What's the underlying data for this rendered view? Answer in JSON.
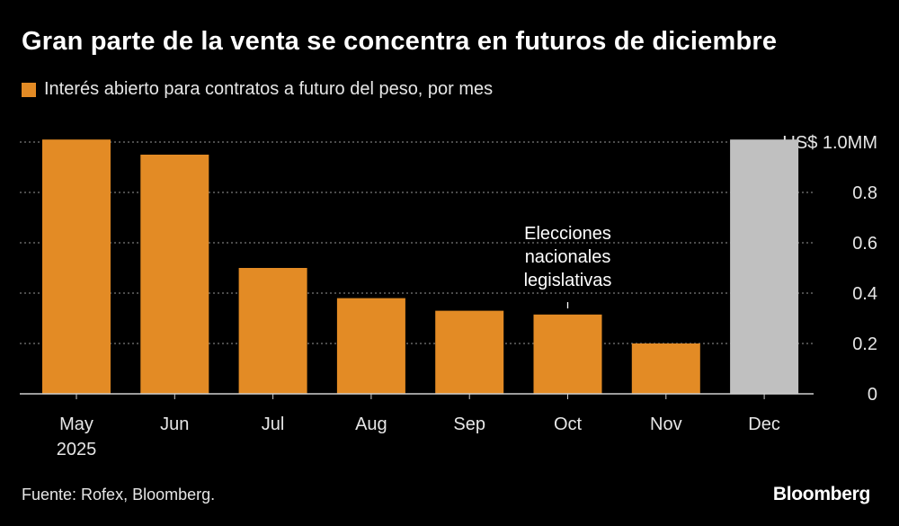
{
  "header": {
    "title": "Gran parte de la venta se concentra en futuros de diciembre",
    "legend_label": "Interés abierto para contratos a futuro del peso, por mes"
  },
  "footer": {
    "source": "Fuente: Rofex, Bloomberg.",
    "brand": "Bloomberg"
  },
  "colors": {
    "primary": "#e38b25",
    "highlight": "#c0c0c0",
    "grid": "#7a7a7a",
    "axis": "#d0d0d0"
  },
  "chart_data": {
    "type": "bar",
    "title": "Gran parte de la venta se concentra en futuros de diciembre",
    "series": [
      {
        "name": "Interés abierto para contratos a futuro del peso, por mes",
        "values": [
          1.02,
          0.95,
          0.5,
          0.38,
          0.33,
          0.315,
          0.2,
          1.01
        ]
      }
    ],
    "categories": [
      "May",
      "Jun",
      "Jul",
      "Aug",
      "Sep",
      "Oct",
      "Nov",
      "Dec"
    ],
    "category_sublabels": [
      "2025",
      "",
      "",
      "",
      "",
      "",
      "",
      ""
    ],
    "highlight_category": "Dec",
    "ylim": [
      0,
      1.0
    ],
    "y_ticks": [
      "0",
      "0.2",
      "0.4",
      "0.6",
      "0.8",
      "US$ 1.0MM"
    ],
    "y_tick_values": [
      0,
      0.2,
      0.4,
      0.6,
      0.8,
      1.0
    ],
    "yaxis_side": "right",
    "grid": true,
    "annotation": {
      "category": "Oct",
      "lines": [
        "Elecciones",
        "nacionales",
        "legislativas"
      ]
    }
  }
}
